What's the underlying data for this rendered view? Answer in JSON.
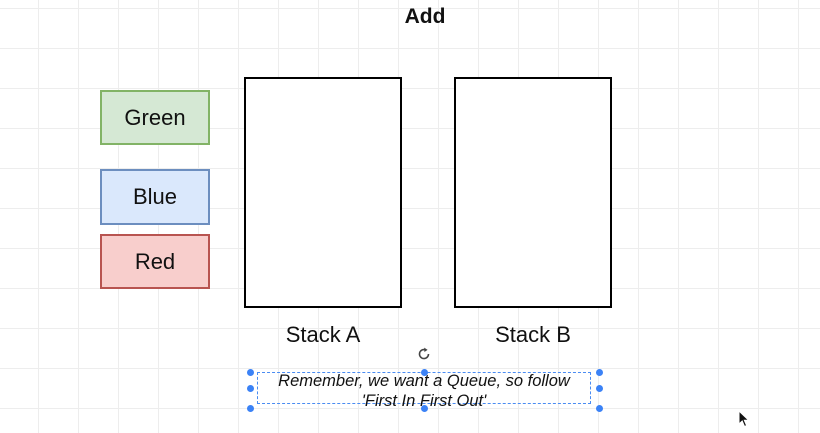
{
  "title": "Add",
  "color_boxes": [
    {
      "label": "Green",
      "fill": "#d5e8d4",
      "stroke": "#82b366"
    },
    {
      "label": "Blue",
      "fill": "#dae8fc",
      "stroke": "#6c8ebf"
    },
    {
      "label": "Red",
      "fill": "#f8cecc",
      "stroke": "#b85450"
    }
  ],
  "stacks": [
    {
      "label": "Stack A"
    },
    {
      "label": "Stack B"
    }
  ],
  "note": {
    "line1": "Remember, we want a Queue, so follow",
    "line2": "'First In First Out'",
    "selection_color": "#3b82f6"
  },
  "icons": [
    "rotate-icon",
    "mouse-cursor-icon"
  ]
}
